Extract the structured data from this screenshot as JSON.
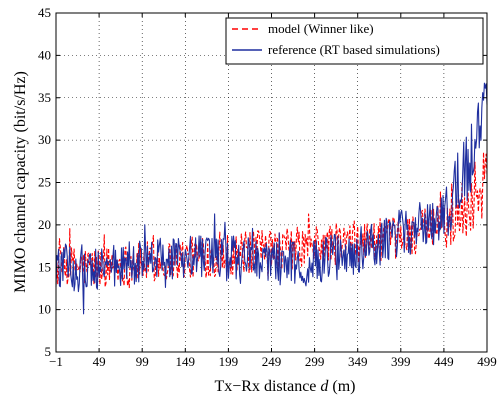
{
  "chart_data": {
    "type": "line",
    "xlabel_prefix": "Tx−Rx distance ",
    "xlabel_var": "d",
    "xlabel_suffix": " (m)",
    "ylabel": "MIMO channel capacity (bit/s/Hz)",
    "xlim": [
      -1,
      499
    ],
    "ylim": [
      5,
      45
    ],
    "xticks": [
      -1,
      49,
      99,
      149,
      199,
      249,
      299,
      349,
      399,
      449,
      499
    ],
    "xtick_labels": [
      "−1",
      "49",
      "99",
      "149",
      "199",
      "249",
      "299",
      "349",
      "399",
      "449",
      "499"
    ],
    "yticks": [
      5,
      10,
      15,
      20,
      25,
      30,
      35,
      40,
      45
    ],
    "ytick_labels": [
      "5",
      "10",
      "15",
      "20",
      "25",
      "30",
      "35",
      "40",
      "45"
    ],
    "grid": true,
    "legend_position": "top-right",
    "series": [
      {
        "name": "model (Winner like)",
        "color": "#ff0000",
        "style": "dashed",
        "trend": [
          [
            -1,
            15.0
          ],
          [
            49,
            15.0
          ],
          [
            99,
            15.5
          ],
          [
            149,
            16.0
          ],
          [
            199,
            16.5
          ],
          [
            249,
            17.0
          ],
          [
            299,
            17.5
          ],
          [
            349,
            18.0
          ],
          [
            399,
            18.5
          ],
          [
            449,
            20.0
          ],
          [
            479,
            22.5
          ],
          [
            499,
            26.0
          ]
        ],
        "noise_amplitude": 2.5,
        "x_step": 1
      },
      {
        "name": "reference (RT based simulations)",
        "color": "#1f2f9f",
        "style": "solid",
        "trend": [
          [
            -1,
            15.0
          ],
          [
            49,
            14.8
          ],
          [
            99,
            15.5
          ],
          [
            149,
            16.0
          ],
          [
            199,
            16.0
          ],
          [
            249,
            15.5
          ],
          [
            299,
            15.5
          ],
          [
            349,
            17.0
          ],
          [
            399,
            19.0
          ],
          [
            449,
            21.5
          ],
          [
            479,
            27.0
          ],
          [
            499,
            36.0
          ]
        ],
        "noise_amplitude": 2.8,
        "x_step": 1
      }
    ]
  }
}
